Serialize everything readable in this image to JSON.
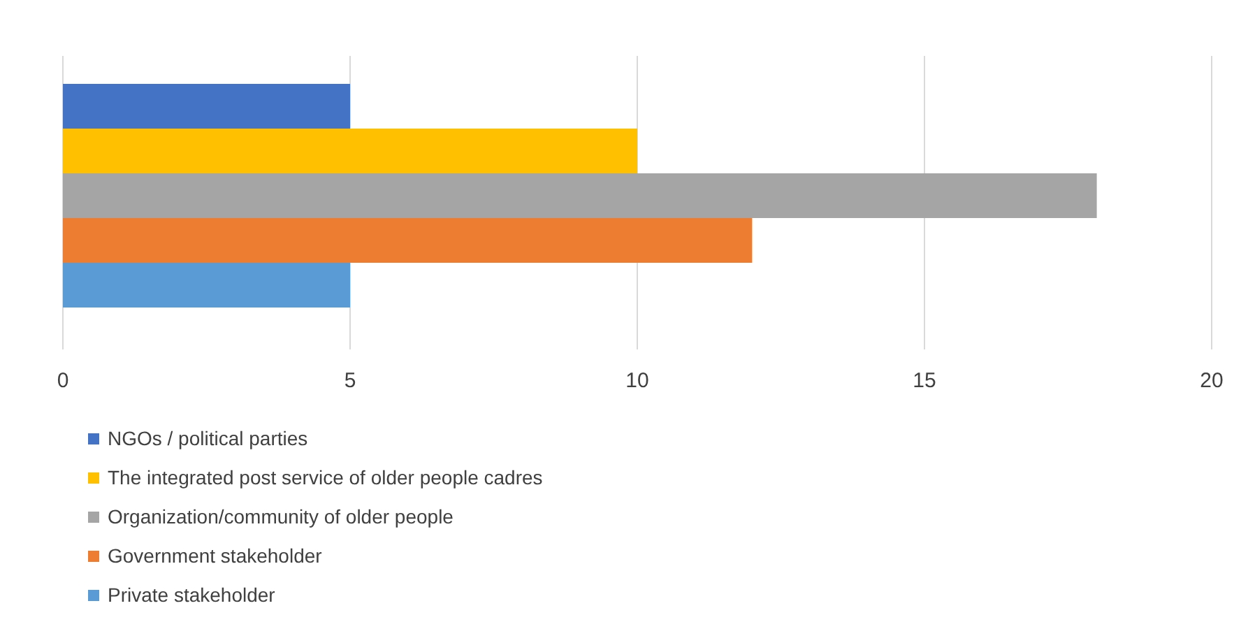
{
  "chart_data": {
    "type": "bar",
    "orientation": "horizontal",
    "categories": [
      null
    ],
    "series": [
      {
        "name": "NGOs / political parties",
        "color": "#4472c4",
        "values": [
          5
        ]
      },
      {
        "name": "The integrated post service of older people cadres",
        "color": "#ffc000",
        "values": [
          10
        ]
      },
      {
        "name": "Organization/community of older people",
        "color": "#a5a5a5",
        "values": [
          18
        ]
      },
      {
        "name": "Government stakeholder",
        "color": "#ed7d31",
        "values": [
          12
        ]
      },
      {
        "name": "Private stakeholder",
        "color": "#5b9bd5",
        "values": [
          5
        ]
      }
    ],
    "xlim": [
      0,
      20
    ],
    "xticks": [
      0,
      5,
      10,
      15,
      20
    ],
    "grid": "x",
    "legend": "bottom"
  }
}
